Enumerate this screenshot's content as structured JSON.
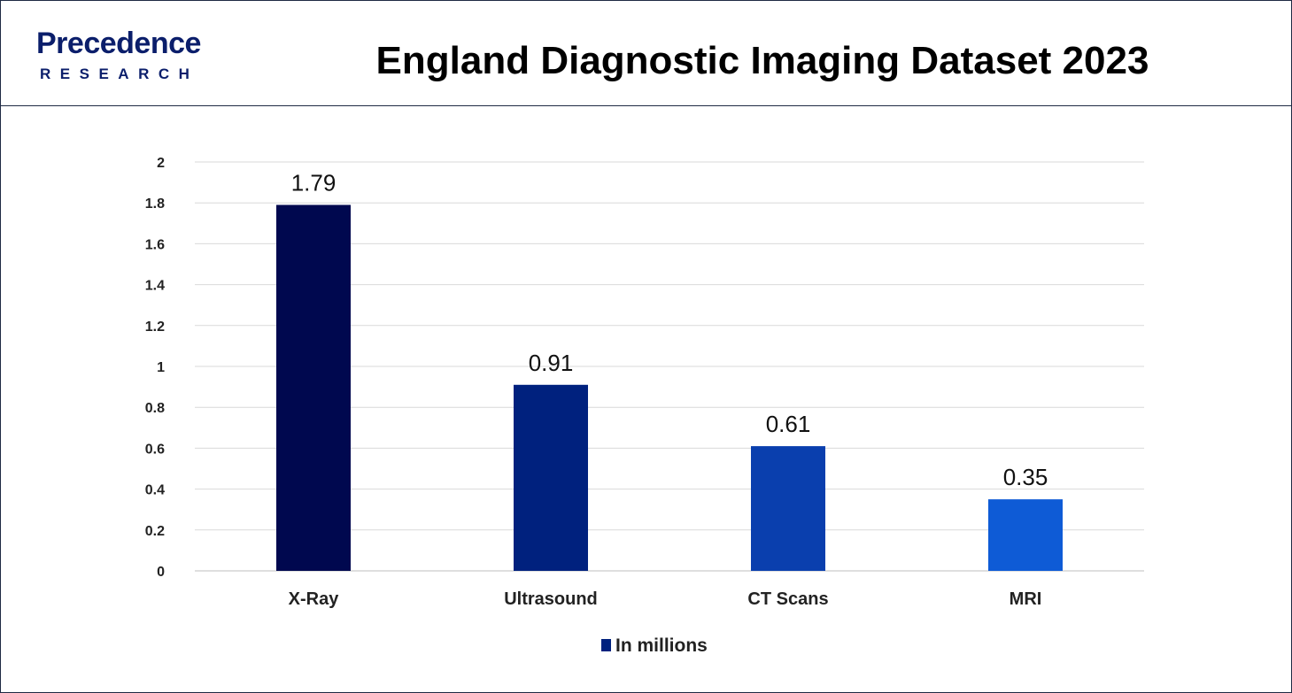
{
  "header": {
    "logo_word": "Precedence",
    "logo_sub": "RESEARCH",
    "title": "England Diagnostic Imaging Dataset 2023"
  },
  "colors": {
    "bars": [
      "#00084f",
      "#00217e",
      "#0a3fae",
      "#0e5bd6"
    ],
    "grid": "#d9d9d9",
    "text": "#222222",
    "brand": "#0b1e6b"
  },
  "chart_data": {
    "type": "bar",
    "title": "England Diagnostic Imaging Dataset 2023",
    "categories": [
      "X-Ray",
      "Ultrasound",
      "CT Scans",
      "MRI"
    ],
    "series": [
      {
        "name": "In millions",
        "values": [
          1.79,
          0.91,
          0.61,
          0.35
        ]
      }
    ],
    "data_labels": [
      "1.79",
      "0.91",
      "0.61",
      "0.35"
    ],
    "ylim": [
      0,
      2
    ],
    "yticks": [
      "0",
      "0.2",
      "0.4",
      "0.6",
      "0.8",
      "1",
      "1.2",
      "1.4",
      "1.6",
      "1.8",
      "2"
    ],
    "ytick_values": [
      0,
      0.2,
      0.4,
      0.6,
      0.8,
      1,
      1.2,
      1.4,
      1.6,
      1.8,
      2
    ],
    "grid": true,
    "legend": "bottom",
    "xlabel": "",
    "ylabel": ""
  }
}
